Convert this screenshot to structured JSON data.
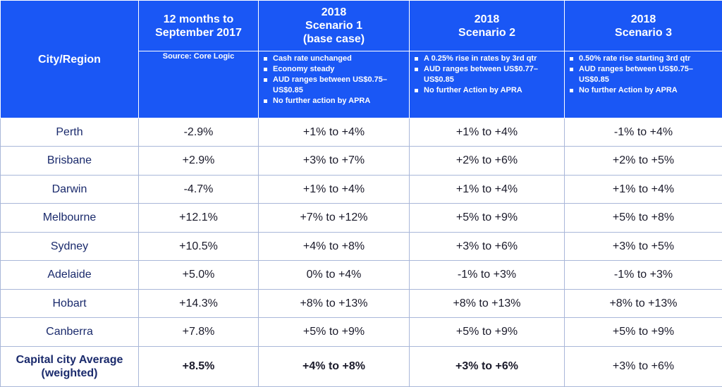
{
  "header": {
    "city_region": "City/Region",
    "columns": [
      {
        "title": "12 months to\nSeptember 2017"
      },
      {
        "title": "2018\nScenario 1\n(base case)"
      },
      {
        "title": "2018\nScenario 2"
      },
      {
        "title": "2018\nScenario 3"
      }
    ],
    "source": "Source: Core Logic",
    "scenario1_notes": [
      "Cash rate unchanged",
      "Economy steady",
      "AUD ranges between US$0.75–US$0.85",
      "No further action by APRA"
    ],
    "scenario2_notes": [
      "A 0.25% rise in rates by 3rd qtr",
      "AUD ranges between US$0.77–US$0.85",
      "No further Action by APRA"
    ],
    "scenario3_notes": [
      "0.50% rate rise starting 3rd qtr",
      "AUD ranges between US$0.75–US$0.85",
      "No further Action by APRA"
    ]
  },
  "rows": [
    {
      "city": "Perth",
      "past": "-2.9%",
      "s1": "+1% to +4%",
      "s2": "+1% to +4%",
      "s3": "-1% to +4%"
    },
    {
      "city": "Brisbane",
      "past": "+2.9%",
      "s1": "+3% to +7%",
      "s2": "+2% to +6%",
      "s3": "+2% to +5%"
    },
    {
      "city": "Darwin",
      "past": "-4.7%",
      "s1": "+1% to +4%",
      "s2": "+1% to +4%",
      "s3": "+1% to +4%"
    },
    {
      "city": "Melbourne",
      "past": "+12.1%",
      "s1": "+7% to +12%",
      "s2": "+5% to +9%",
      "s3": "+5% to +8%"
    },
    {
      "city": "Sydney",
      "past": "+10.5%",
      "s1": "+4% to +8%",
      "s2": "+3% to +6%",
      "s3": "+3% to +5%"
    },
    {
      "city": "Adelaide",
      "past": "+5.0%",
      "s1": "0% to +4%",
      "s2": "-1% to +3%",
      "s3": "-1% to +3%"
    },
    {
      "city": "Hobart",
      "past": "+14.3%",
      "s1": "+8% to +13%",
      "s2": "+8% to +13%",
      "s3": "+8% to +13%"
    },
    {
      "city": "Canberra",
      "past": "+7.8%",
      "s1": "+5% to +9%",
      "s2": "+5% to +9%",
      "s3": "+5% to +9%"
    }
  ],
  "total": {
    "city": "Capital city Average\n(weighted)",
    "past": "+8.5%",
    "s1": "+4% to +8%",
    "s2": "+3% to +6%",
    "s3": "+3% to +6%"
  },
  "colors": {
    "header_bg": "#1a57f5",
    "header_text": "#ffffff",
    "grid_line": "#a9b7d9"
  }
}
